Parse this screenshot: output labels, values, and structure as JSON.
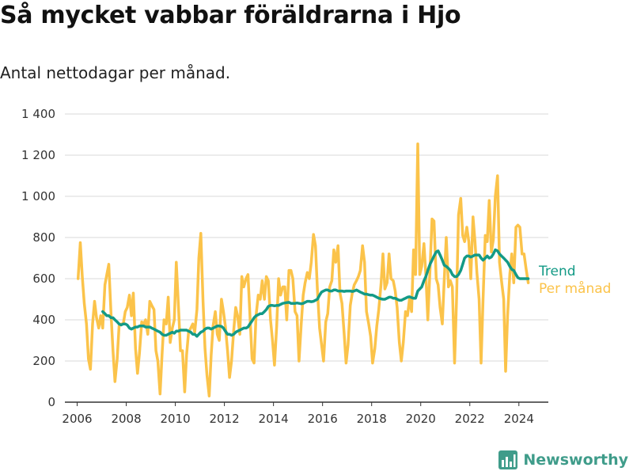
{
  "header": {
    "title": "Så mycket vabbar föräldrarna i Hjo",
    "subtitle": "Antal nettodagar per månad."
  },
  "brand": {
    "name": "Newsworthy",
    "icon": "bar-chart-icon",
    "color": "#3f9c8a"
  },
  "colors": {
    "monthly": "#fbc34a",
    "trend": "#139a86",
    "grid": "#d9d9d9"
  },
  "chart_data": {
    "type": "line",
    "title": "Så mycket vabbar föräldrarna i Hjo",
    "subtitle": "Antal nettodagar per månad.",
    "xlabel": "",
    "ylabel": "",
    "x_range": [
      2005.5,
      2025.2
    ],
    "ylim": [
      0,
      1400
    ],
    "y_ticks": [
      0,
      200,
      400,
      600,
      800,
      1000,
      1200,
      1400
    ],
    "y_tick_labels": [
      "0",
      "200",
      "400",
      "600",
      "800",
      "1 000",
      "1 200",
      "1 400"
    ],
    "x_ticks": [
      2006,
      2008,
      2010,
      2012,
      2014,
      2016,
      2018,
      2020,
      2022,
      2024
    ],
    "x_tick_labels": [
      "2006",
      "2008",
      "2010",
      "2012",
      "2014",
      "2016",
      "2018",
      "2020",
      "2022",
      "2024"
    ],
    "grid": "horizontal",
    "legend": "direct labels at right end of lines",
    "series": [
      {
        "name": "Per månad",
        "x": [
          2006.04,
          2006.13,
          2006.21,
          2006.29,
          2006.38,
          2006.46,
          2006.54,
          2006.63,
          2006.71,
          2006.79,
          2006.88,
          2006.96,
          2007.04,
          2007.13,
          2007.21,
          2007.29,
          2007.38,
          2007.46,
          2007.54,
          2007.63,
          2007.71,
          2007.79,
          2007.88,
          2007.96,
          2008.04,
          2008.13,
          2008.21,
          2008.29,
          2008.38,
          2008.46,
          2008.54,
          2008.63,
          2008.71,
          2008.79,
          2008.88,
          2008.96,
          2009.04,
          2009.13,
          2009.21,
          2009.29,
          2009.38,
          2009.46,
          2009.54,
          2009.63,
          2009.71,
          2009.79,
          2009.88,
          2009.96,
          2010.04,
          2010.13,
          2010.21,
          2010.29,
          2010.38,
          2010.46,
          2010.54,
          2010.63,
          2010.71,
          2010.79,
          2010.88,
          2010.96,
          2011.04,
          2011.13,
          2011.21,
          2011.29,
          2011.38,
          2011.46,
          2011.54,
          2011.63,
          2011.71,
          2011.79,
          2011.88,
          2011.96,
          2012.04,
          2012.13,
          2012.21,
          2012.29,
          2012.38,
          2012.46,
          2012.54,
          2012.63,
          2012.71,
          2012.79,
          2012.88,
          2012.96,
          2013.04,
          2013.13,
          2013.21,
          2013.29,
          2013.38,
          2013.46,
          2013.54,
          2013.63,
          2013.71,
          2013.79,
          2013.88,
          2013.96,
          2014.04,
          2014.13,
          2014.21,
          2014.29,
          2014.38,
          2014.46,
          2014.54,
          2014.63,
          2014.71,
          2014.79,
          2014.88,
          2014.96,
          2015.04,
          2015.13,
          2015.21,
          2015.29,
          2015.38,
          2015.46,
          2015.54,
          2015.63,
          2015.71,
          2015.79,
          2015.88,
          2015.96,
          2016.04,
          2016.13,
          2016.21,
          2016.29,
          2016.38,
          2016.46,
          2016.54,
          2016.63,
          2016.71,
          2016.79,
          2016.88,
          2016.96,
          2017.04,
          2017.13,
          2017.21,
          2017.29,
          2017.38,
          2017.46,
          2017.54,
          2017.63,
          2017.71,
          2017.79,
          2017.88,
          2017.96,
          2018.04,
          2018.13,
          2018.21,
          2018.29,
          2018.38,
          2018.46,
          2018.54,
          2018.63,
          2018.71,
          2018.79,
          2018.88,
          2018.96,
          2019.04,
          2019.13,
          2019.21,
          2019.29,
          2019.38,
          2019.46,
          2019.54,
          2019.63,
          2019.71,
          2019.79,
          2019.88,
          2019.96,
          2020.04,
          2020.13,
          2020.21,
          2020.29,
          2020.38,
          2020.46,
          2020.54,
          2020.63,
          2020.71,
          2020.79,
          2020.88,
          2020.96,
          2021.04,
          2021.13,
          2021.21,
          2021.29,
          2021.38,
          2021.46,
          2021.54,
          2021.63,
          2021.71,
          2021.79,
          2021.88,
          2021.96,
          2022.04,
          2022.13,
          2022.21,
          2022.29,
          2022.38,
          2022.46,
          2022.54,
          2022.63,
          2022.71,
          2022.79,
          2022.88,
          2022.96,
          2023.04,
          2023.13,
          2023.21,
          2023.29,
          2023.38,
          2023.46,
          2023.54,
          2023.63,
          2023.71,
          2023.79,
          2023.88,
          2023.96,
          2024.04,
          2024.13,
          2024.21,
          2024.29,
          2024.38
        ],
        "values": [
          600,
          775,
          610,
          480,
          380,
          210,
          160,
          380,
          490,
          410,
          360,
          420,
          360,
          570,
          620,
          670,
          430,
          250,
          100,
          210,
          370,
          380,
          380,
          440,
          460,
          520,
          420,
          530,
          260,
          140,
          240,
          390,
          380,
          400,
          330,
          490,
          470,
          450,
          250,
          200,
          40,
          230,
          400,
          380,
          510,
          290,
          360,
          400,
          680,
          460,
          250,
          250,
          50,
          230,
          340,
          360,
          380,
          340,
          450,
          700,
          820,
          490,
          260,
          130,
          30,
          230,
          370,
          440,
          330,
          300,
          500,
          440,
          370,
          250,
          120,
          200,
          350,
          460,
          420,
          330,
          610,
          560,
          600,
          620,
          420,
          210,
          190,
          420,
          520,
          500,
          590,
          500,
          610,
          590,
          400,
          300,
          180,
          370,
          600,
          520,
          560,
          560,
          400,
          640,
          640,
          600,
          440,
          420,
          200,
          380,
          520,
          580,
          630,
          600,
          680,
          815,
          760,
          550,
          360,
          280,
          200,
          390,
          430,
          560,
          590,
          740,
          680,
          760,
          530,
          480,
          330,
          190,
          280,
          470,
          530,
          570,
          590,
          610,
          640,
          760,
          680,
          440,
          380,
          320,
          190,
          260,
          370,
          450,
          570,
          720,
          550,
          580,
          720,
          600,
          590,
          540,
          460,
          290,
          200,
          290,
          440,
          420,
          500,
          440,
          740,
          620,
          1255,
          620,
          660,
          770,
          620,
          400,
          650,
          890,
          880,
          600,
          570,
          460,
          380,
          600,
          800,
          560,
          590,
          560,
          190,
          500,
          910,
          990,
          810,
          780,
          850,
          780,
          600,
          900,
          780,
          630,
          500,
          190,
          500,
          810,
          780,
          980,
          730,
          790,
          1000,
          1100,
          680,
          590,
          500,
          150,
          420,
          620,
          720,
          580,
          850,
          860,
          850,
          720,
          720,
          650,
          580
        ],
        "color": "#fbc34a"
      },
      {
        "name": "Trend",
        "x": [
          2007.04,
          2007.13,
          2007.21,
          2007.29,
          2007.38,
          2007.46,
          2007.54,
          2007.63,
          2007.71,
          2007.79,
          2007.88,
          2007.96,
          2008.04,
          2008.13,
          2008.21,
          2008.29,
          2008.38,
          2008.46,
          2008.54,
          2008.63,
          2008.71,
          2008.79,
          2008.88,
          2008.96,
          2009.04,
          2009.13,
          2009.21,
          2009.29,
          2009.38,
          2009.46,
          2009.54,
          2009.63,
          2009.71,
          2009.79,
          2009.88,
          2009.96,
          2010.04,
          2010.13,
          2010.21,
          2010.29,
          2010.38,
          2010.46,
          2010.54,
          2010.63,
          2010.71,
          2010.79,
          2010.88,
          2010.96,
          2011.04,
          2011.13,
          2011.21,
          2011.29,
          2011.38,
          2011.46,
          2011.54,
          2011.63,
          2011.71,
          2011.79,
          2011.88,
          2011.96,
          2012.04,
          2012.13,
          2012.21,
          2012.29,
          2012.38,
          2012.46,
          2012.54,
          2012.63,
          2012.71,
          2012.79,
          2012.88,
          2012.96,
          2013.04,
          2013.13,
          2013.21,
          2013.29,
          2013.38,
          2013.46,
          2013.54,
          2013.63,
          2013.71,
          2013.79,
          2013.88,
          2013.96,
          2014.04,
          2014.13,
          2014.21,
          2014.29,
          2014.38,
          2014.46,
          2014.54,
          2014.63,
          2014.71,
          2014.79,
          2014.88,
          2014.96,
          2015.04,
          2015.13,
          2015.21,
          2015.29,
          2015.38,
          2015.46,
          2015.54,
          2015.63,
          2015.71,
          2015.79,
          2015.88,
          2015.96,
          2016.04,
          2016.13,
          2016.21,
          2016.29,
          2016.38,
          2016.46,
          2016.54,
          2016.63,
          2016.71,
          2016.79,
          2016.88,
          2016.96,
          2017.04,
          2017.13,
          2017.21,
          2017.29,
          2017.38,
          2017.46,
          2017.54,
          2017.63,
          2017.71,
          2017.79,
          2017.88,
          2017.96,
          2018.04,
          2018.13,
          2018.21,
          2018.29,
          2018.38,
          2018.46,
          2018.54,
          2018.63,
          2018.71,
          2018.79,
          2018.88,
          2018.96,
          2019.04,
          2019.13,
          2019.21,
          2019.29,
          2019.38,
          2019.46,
          2019.54,
          2019.63,
          2019.71,
          2019.79,
          2019.88,
          2019.96,
          2020.04,
          2020.13,
          2020.21,
          2020.29,
          2020.38,
          2020.46,
          2020.54,
          2020.63,
          2020.71,
          2020.79,
          2020.88,
          2020.96,
          2021.04,
          2021.13,
          2021.21,
          2021.29,
          2021.38,
          2021.46,
          2021.54,
          2021.63,
          2021.71,
          2021.79,
          2021.88,
          2021.96,
          2022.04,
          2022.13,
          2022.21,
          2022.29,
          2022.38,
          2022.46,
          2022.54,
          2022.63,
          2022.71,
          2022.79,
          2022.88,
          2022.96,
          2023.04,
          2023.13,
          2023.21,
          2023.29,
          2023.38,
          2023.46,
          2023.54,
          2023.63,
          2023.71,
          2023.79,
          2023.88,
          2023.96,
          2024.04,
          2024.13,
          2024.21,
          2024.29,
          2024.38
        ],
        "values": [
          440,
          430,
          420,
          420,
          410,
          410,
          400,
          390,
          380,
          375,
          380,
          380,
          375,
          360,
          355,
          360,
          365,
          365,
          370,
          370,
          370,
          365,
          365,
          365,
          360,
          355,
          350,
          345,
          340,
          330,
          325,
          325,
          330,
          335,
          340,
          335,
          345,
          345,
          350,
          350,
          350,
          350,
          345,
          340,
          330,
          330,
          320,
          330,
          340,
          345,
          355,
          360,
          360,
          355,
          360,
          365,
          370,
          370,
          368,
          360,
          345,
          330,
          330,
          325,
          330,
          340,
          345,
          350,
          355,
          360,
          360,
          365,
          380,
          395,
          410,
          420,
          425,
          430,
          430,
          440,
          450,
          465,
          470,
          470,
          468,
          470,
          470,
          475,
          480,
          482,
          484,
          485,
          480,
          480,
          480,
          482,
          480,
          478,
          480,
          485,
          490,
          490,
          488,
          490,
          495,
          500,
          520,
          535,
          540,
          545,
          545,
          540,
          540,
          545,
          545,
          540,
          540,
          540,
          538,
          540,
          540,
          540,
          538,
          540,
          545,
          540,
          535,
          530,
          525,
          525,
          522,
          520,
          520,
          515,
          510,
          505,
          502,
          500,
          500,
          505,
          510,
          510,
          505,
          505,
          500,
          495,
          495,
          500,
          505,
          510,
          512,
          508,
          505,
          505,
          540,
          550,
          560,
          590,
          610,
          640,
          670,
          690,
          710,
          730,
          735,
          715,
          690,
          665,
          660,
          650,
          640,
          620,
          610,
          610,
          620,
          640,
          670,
          700,
          710,
          710,
          705,
          710,
          715,
          715,
          715,
          700,
          690,
          700,
          710,
          700,
          705,
          720,
          740,
          735,
          720,
          710,
          700,
          690,
          680,
          660,
          645,
          640,
          620,
          605,
          600,
          600,
          600,
          600,
          600
        ],
        "color": "#139a86"
      }
    ],
    "series_labels": [
      "Trend",
      "Per månad"
    ]
  }
}
